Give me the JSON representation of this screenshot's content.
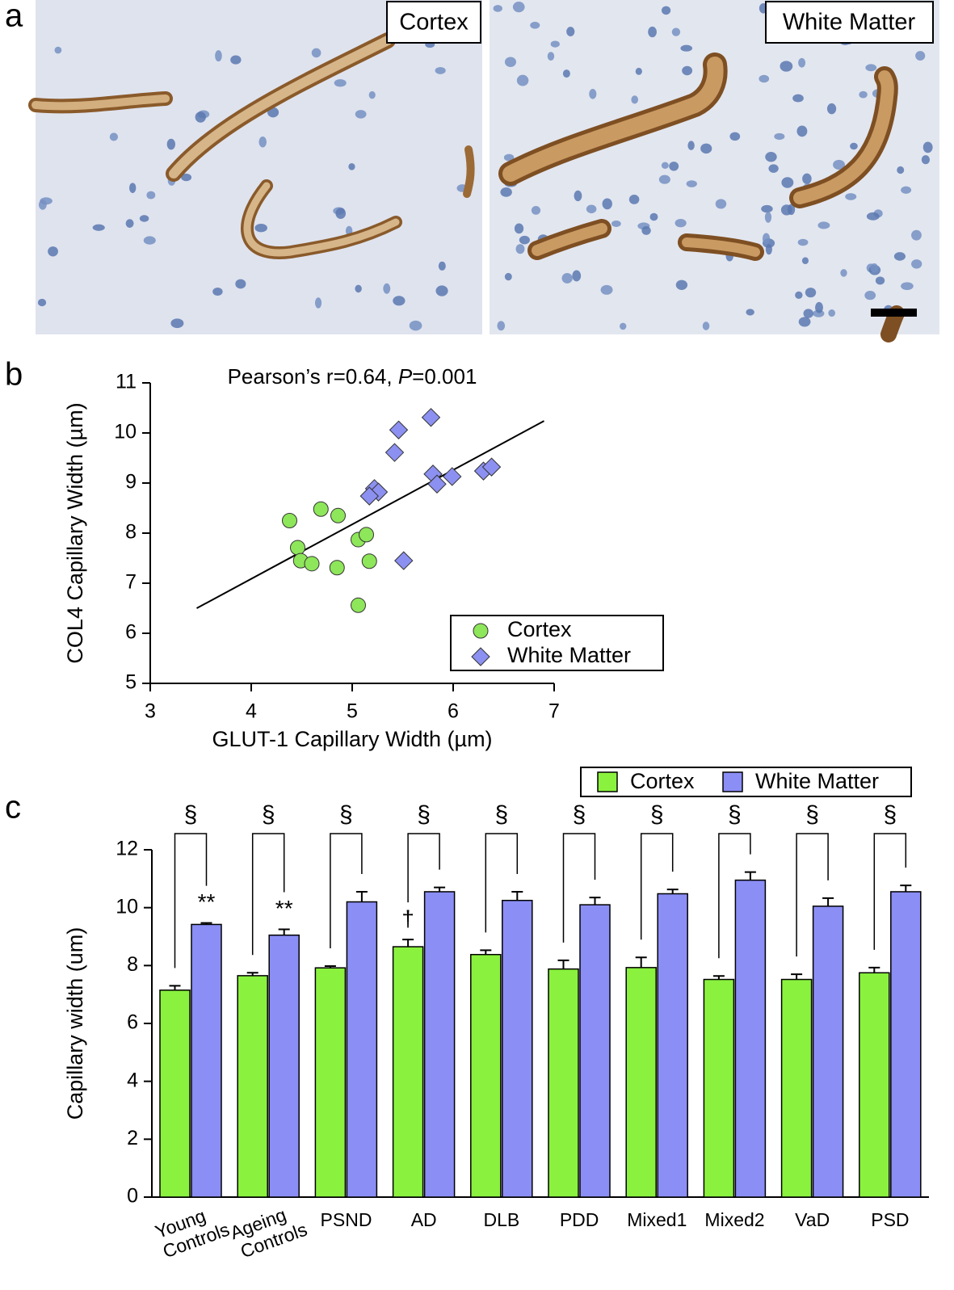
{
  "panel_labels": [
    "a",
    "b",
    "c"
  ],
  "micrographs": [
    {
      "label": "Cortex"
    },
    {
      "label": "White Matter"
    }
  ],
  "chart_data": [
    {
      "type": "scatter",
      "annotation": {
        "text": "Pearson’s r=0.64, ",
        "italic": "P",
        "suffix": "=0.001"
      },
      "x_label": "GLUT-1 Capillary Width (µm)",
      "y_label": "COL4 Capillary Width (µm)",
      "xlim": [
        3,
        7
      ],
      "ylim": [
        5,
        11
      ],
      "xticks": [
        3,
        4,
        5,
        6,
        7
      ],
      "yticks": [
        5,
        6,
        7,
        8,
        9,
        10,
        11
      ],
      "series": [
        {
          "name": "Cortex",
          "color": "#8ee65a",
          "marker": "circle",
          "x": [
            4.38,
            4.69,
            4.86,
            4.46,
            4.49,
            4.6,
            4.85,
            5.06,
            5.14,
            5.17,
            5.06
          ],
          "y": [
            8.25,
            8.48,
            8.35,
            7.71,
            7.45,
            7.39,
            7.31,
            7.87,
            7.97,
            7.44,
            6.56
          ]
        },
        {
          "name": "White Matter",
          "color": "#8c90f0",
          "marker": "diamond",
          "x": [
            5.46,
            5.78,
            5.42,
            5.8,
            5.84,
            5.99,
            6.3,
            6.38,
            5.22,
            5.26,
            5.17,
            5.51
          ],
          "y": [
            10.06,
            10.31,
            9.61,
            9.18,
            8.98,
            9.13,
            9.24,
            9.32,
            8.89,
            8.82,
            8.74,
            7.45
          ]
        }
      ],
      "trendline": {
        "x": [
          3.46,
          6.9
        ],
        "y": [
          6.5,
          10.24
        ]
      },
      "legend": "lower right"
    },
    {
      "type": "bar",
      "y_label": "Capillary width (um)",
      "categories": [
        "Young Controls",
        "Ageing Controls",
        "PSND",
        "AD",
        "DLB",
        "PDD",
        "Mixed1",
        "Mixed2",
        "VaD",
        "PSD"
      ],
      "ylim": [
        0,
        12
      ],
      "yticks": [
        0,
        2,
        4,
        6,
        8,
        10,
        12
      ],
      "series": [
        {
          "name": "Cortex",
          "color": "#8af23e",
          "values": [
            7.15,
            7.65,
            7.92,
            8.65,
            8.38,
            7.88,
            7.93,
            7.52,
            7.52,
            7.75
          ],
          "errors": [
            0.15,
            0.1,
            0.06,
            0.25,
            0.15,
            0.3,
            0.35,
            0.12,
            0.18,
            0.18
          ],
          "markers": [
            null,
            null,
            null,
            "†",
            null,
            null,
            null,
            null,
            null,
            null
          ]
        },
        {
          "name": "White Matter",
          "color": "#8b8ef5",
          "values": [
            9.42,
            9.05,
            10.2,
            10.55,
            10.25,
            10.1,
            10.48,
            10.95,
            10.05,
            10.55
          ],
          "errors": [
            0.05,
            0.2,
            0.35,
            0.15,
            0.3,
            0.25,
            0.15,
            0.28,
            0.28,
            0.22
          ],
          "markers": [
            "**",
            "**",
            null,
            null,
            null,
            null,
            null,
            null,
            null,
            null
          ]
        }
      ],
      "pair_markers": [
        "§",
        "§",
        "§",
        "§",
        "§",
        "§",
        "§",
        "§",
        "§",
        "§"
      ],
      "legend": "upper right"
    }
  ]
}
